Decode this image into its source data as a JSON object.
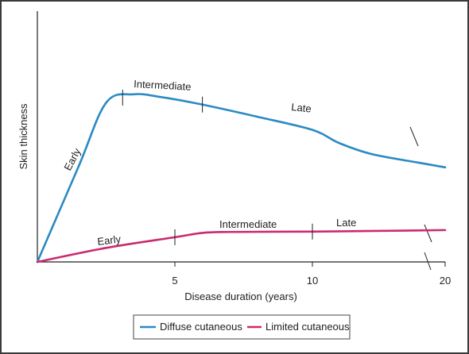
{
  "chart_data": {
    "type": "line",
    "xlabel": "Disease duration (years)",
    "ylabel": "Skin thickness",
    "x_ticks": [
      "5",
      "10",
      "20"
    ],
    "series": [
      {
        "name": "Diffuse cutaneous",
        "color": "#2a8ac4",
        "points": [
          [
            0,
            0
          ],
          [
            1.5,
            5.1
          ],
          [
            2.5,
            8.5
          ],
          [
            3.5,
            8.95
          ],
          [
            4.5,
            8.8
          ],
          [
            6,
            8.4
          ],
          [
            8,
            7.75
          ],
          [
            10,
            7.05
          ],
          [
            12,
            6.35
          ],
          [
            14.5,
            5.75
          ],
          [
            18,
            5.3
          ],
          [
            20,
            5.05
          ]
        ],
        "phases": [
          "Early",
          "Intermediate",
          "Late"
        ],
        "phase_boundaries": [
          3.1,
          6,
          18.5
        ]
      },
      {
        "name": "Limited cutaneous",
        "color": "#cc2a6e",
        "points": [
          [
            0,
            0
          ],
          [
            2.5,
            0.75
          ],
          [
            5,
            1.32
          ],
          [
            6,
            1.55
          ],
          [
            7,
            1.6
          ],
          [
            10,
            1.62
          ],
          [
            14,
            1.65
          ],
          [
            18,
            1.68
          ],
          [
            20,
            1.7
          ]
        ],
        "phases": [
          "Early",
          "Intermediate",
          "Late"
        ],
        "phase_boundaries": [
          5,
          10,
          19
        ]
      }
    ],
    "axis_break": true,
    "grid": false,
    "legend_position": "bottom"
  }
}
